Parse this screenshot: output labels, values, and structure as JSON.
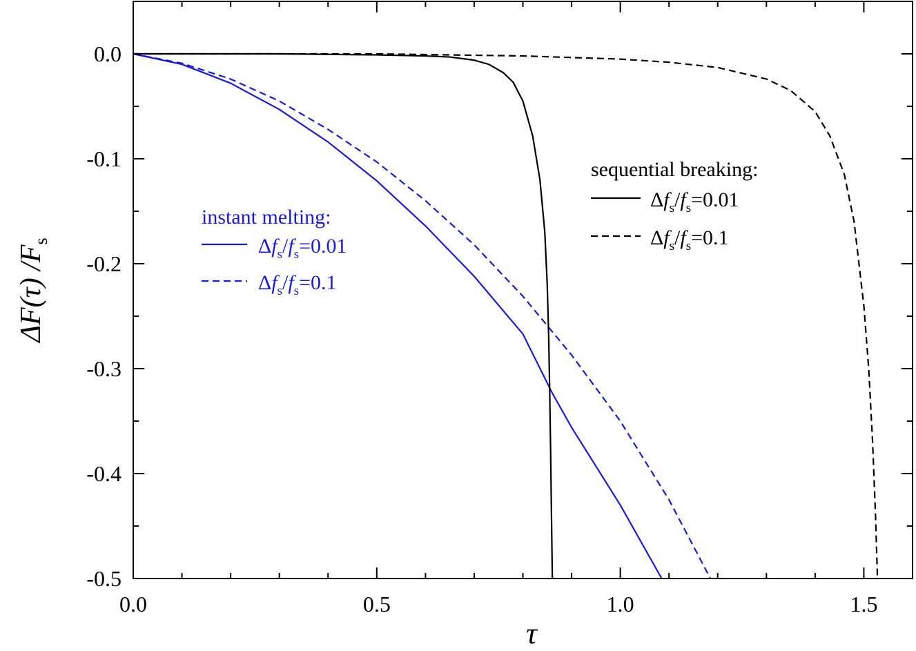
{
  "chart_data": {
    "type": "line",
    "xlabel": "τ",
    "ylabel_main": "ΔF(τ) /F",
    "ylabel_sub": "s",
    "xlim": [
      0.0,
      1.6
    ],
    "ylim": [
      -0.5,
      0.05
    ],
    "x_ticks": [
      "0.0",
      "0.5",
      "1.0",
      "1.5"
    ],
    "y_ticks": [
      "0.0",
      "-0.1",
      "-0.2",
      "-0.3",
      "-0.4",
      "-0.5"
    ],
    "grid": false,
    "legends": [
      {
        "title": "instant melting:",
        "color": "#1a1adc",
        "placement": "center-left",
        "entries": [
          {
            "line": "solid",
            "pre": "Δ",
            "f1": "f",
            "s1": "s",
            "slash": "/",
            "f2": "f",
            "s2": "s",
            "val": "=0.01"
          },
          {
            "line": "dashed",
            "pre": "Δ",
            "f1": "f",
            "s1": "s",
            "slash": "/",
            "f2": "f",
            "s2": "s",
            "val": "=0.1"
          }
        ]
      },
      {
        "title": "sequential breaking:",
        "color": "#000000",
        "placement": "top-right",
        "entries": [
          {
            "line": "solid",
            "pre": "Δ",
            "f1": "f",
            "s1": "s",
            "slash": "/",
            "f2": "f",
            "s2": "s",
            "val": "=0.01"
          },
          {
            "line": "dashed",
            "pre": "Δ",
            "f1": "f",
            "s1": "s",
            "slash": "/",
            "f2": "f",
            "s2": "s",
            "val": "=0.1"
          }
        ]
      }
    ],
    "series": [
      {
        "group": "instant melting",
        "param": "Δf_s/f_s=0.01",
        "color": "#1a1adc",
        "dash": "solid",
        "x": [
          0,
          0.1,
          0.2,
          0.3,
          0.4,
          0.5,
          0.6,
          0.7,
          0.8,
          0.86,
          0.9,
          1.0,
          1.085
        ],
        "y": [
          0,
          -0.01,
          -0.028,
          -0.053,
          -0.084,
          -0.121,
          -0.164,
          -0.212,
          -0.267,
          -0.323,
          -0.356,
          -0.43,
          -0.5
        ]
      },
      {
        "group": "instant melting",
        "param": "Δf_s/f_s=0.1",
        "color": "#1a1adc",
        "dash": "dashed",
        "x": [
          0,
          0.1,
          0.2,
          0.3,
          0.4,
          0.5,
          0.6,
          0.7,
          0.8,
          0.9,
          1.0,
          1.1,
          1.185
        ],
        "y": [
          0,
          -0.009,
          -0.024,
          -0.045,
          -0.072,
          -0.103,
          -0.14,
          -0.182,
          -0.231,
          -0.287,
          -0.35,
          -0.425,
          -0.5
        ]
      },
      {
        "group": "sequential breaking",
        "param": "Δf_s/f_s=0.01",
        "color": "#000000",
        "dash": "solid",
        "x": [
          0,
          0.3,
          0.5,
          0.6,
          0.65,
          0.7,
          0.73,
          0.76,
          0.78,
          0.8,
          0.82,
          0.835,
          0.845,
          0.85,
          0.853,
          0.855,
          0.857,
          0.859,
          0.8605
        ],
        "y": [
          0,
          0,
          -0.001,
          -0.002,
          -0.003,
          -0.006,
          -0.01,
          -0.018,
          -0.027,
          -0.045,
          -0.078,
          -0.12,
          -0.17,
          -0.22,
          -0.27,
          -0.32,
          -0.38,
          -0.45,
          -0.5
        ]
      },
      {
        "group": "sequential breaking",
        "param": "Δf_s/f_s=0.1",
        "color": "#000000",
        "dash": "dashed",
        "x": [
          0,
          0.5,
          0.8,
          1.0,
          1.1,
          1.2,
          1.3,
          1.35,
          1.4,
          1.43,
          1.46,
          1.48,
          1.5,
          1.51,
          1.518,
          1.524,
          1.528
        ],
        "y": [
          0,
          0,
          -0.002,
          -0.005,
          -0.008,
          -0.013,
          -0.024,
          -0.035,
          -0.055,
          -0.078,
          -0.115,
          -0.16,
          -0.24,
          -0.3,
          -0.37,
          -0.44,
          -0.5
        ]
      }
    ]
  }
}
